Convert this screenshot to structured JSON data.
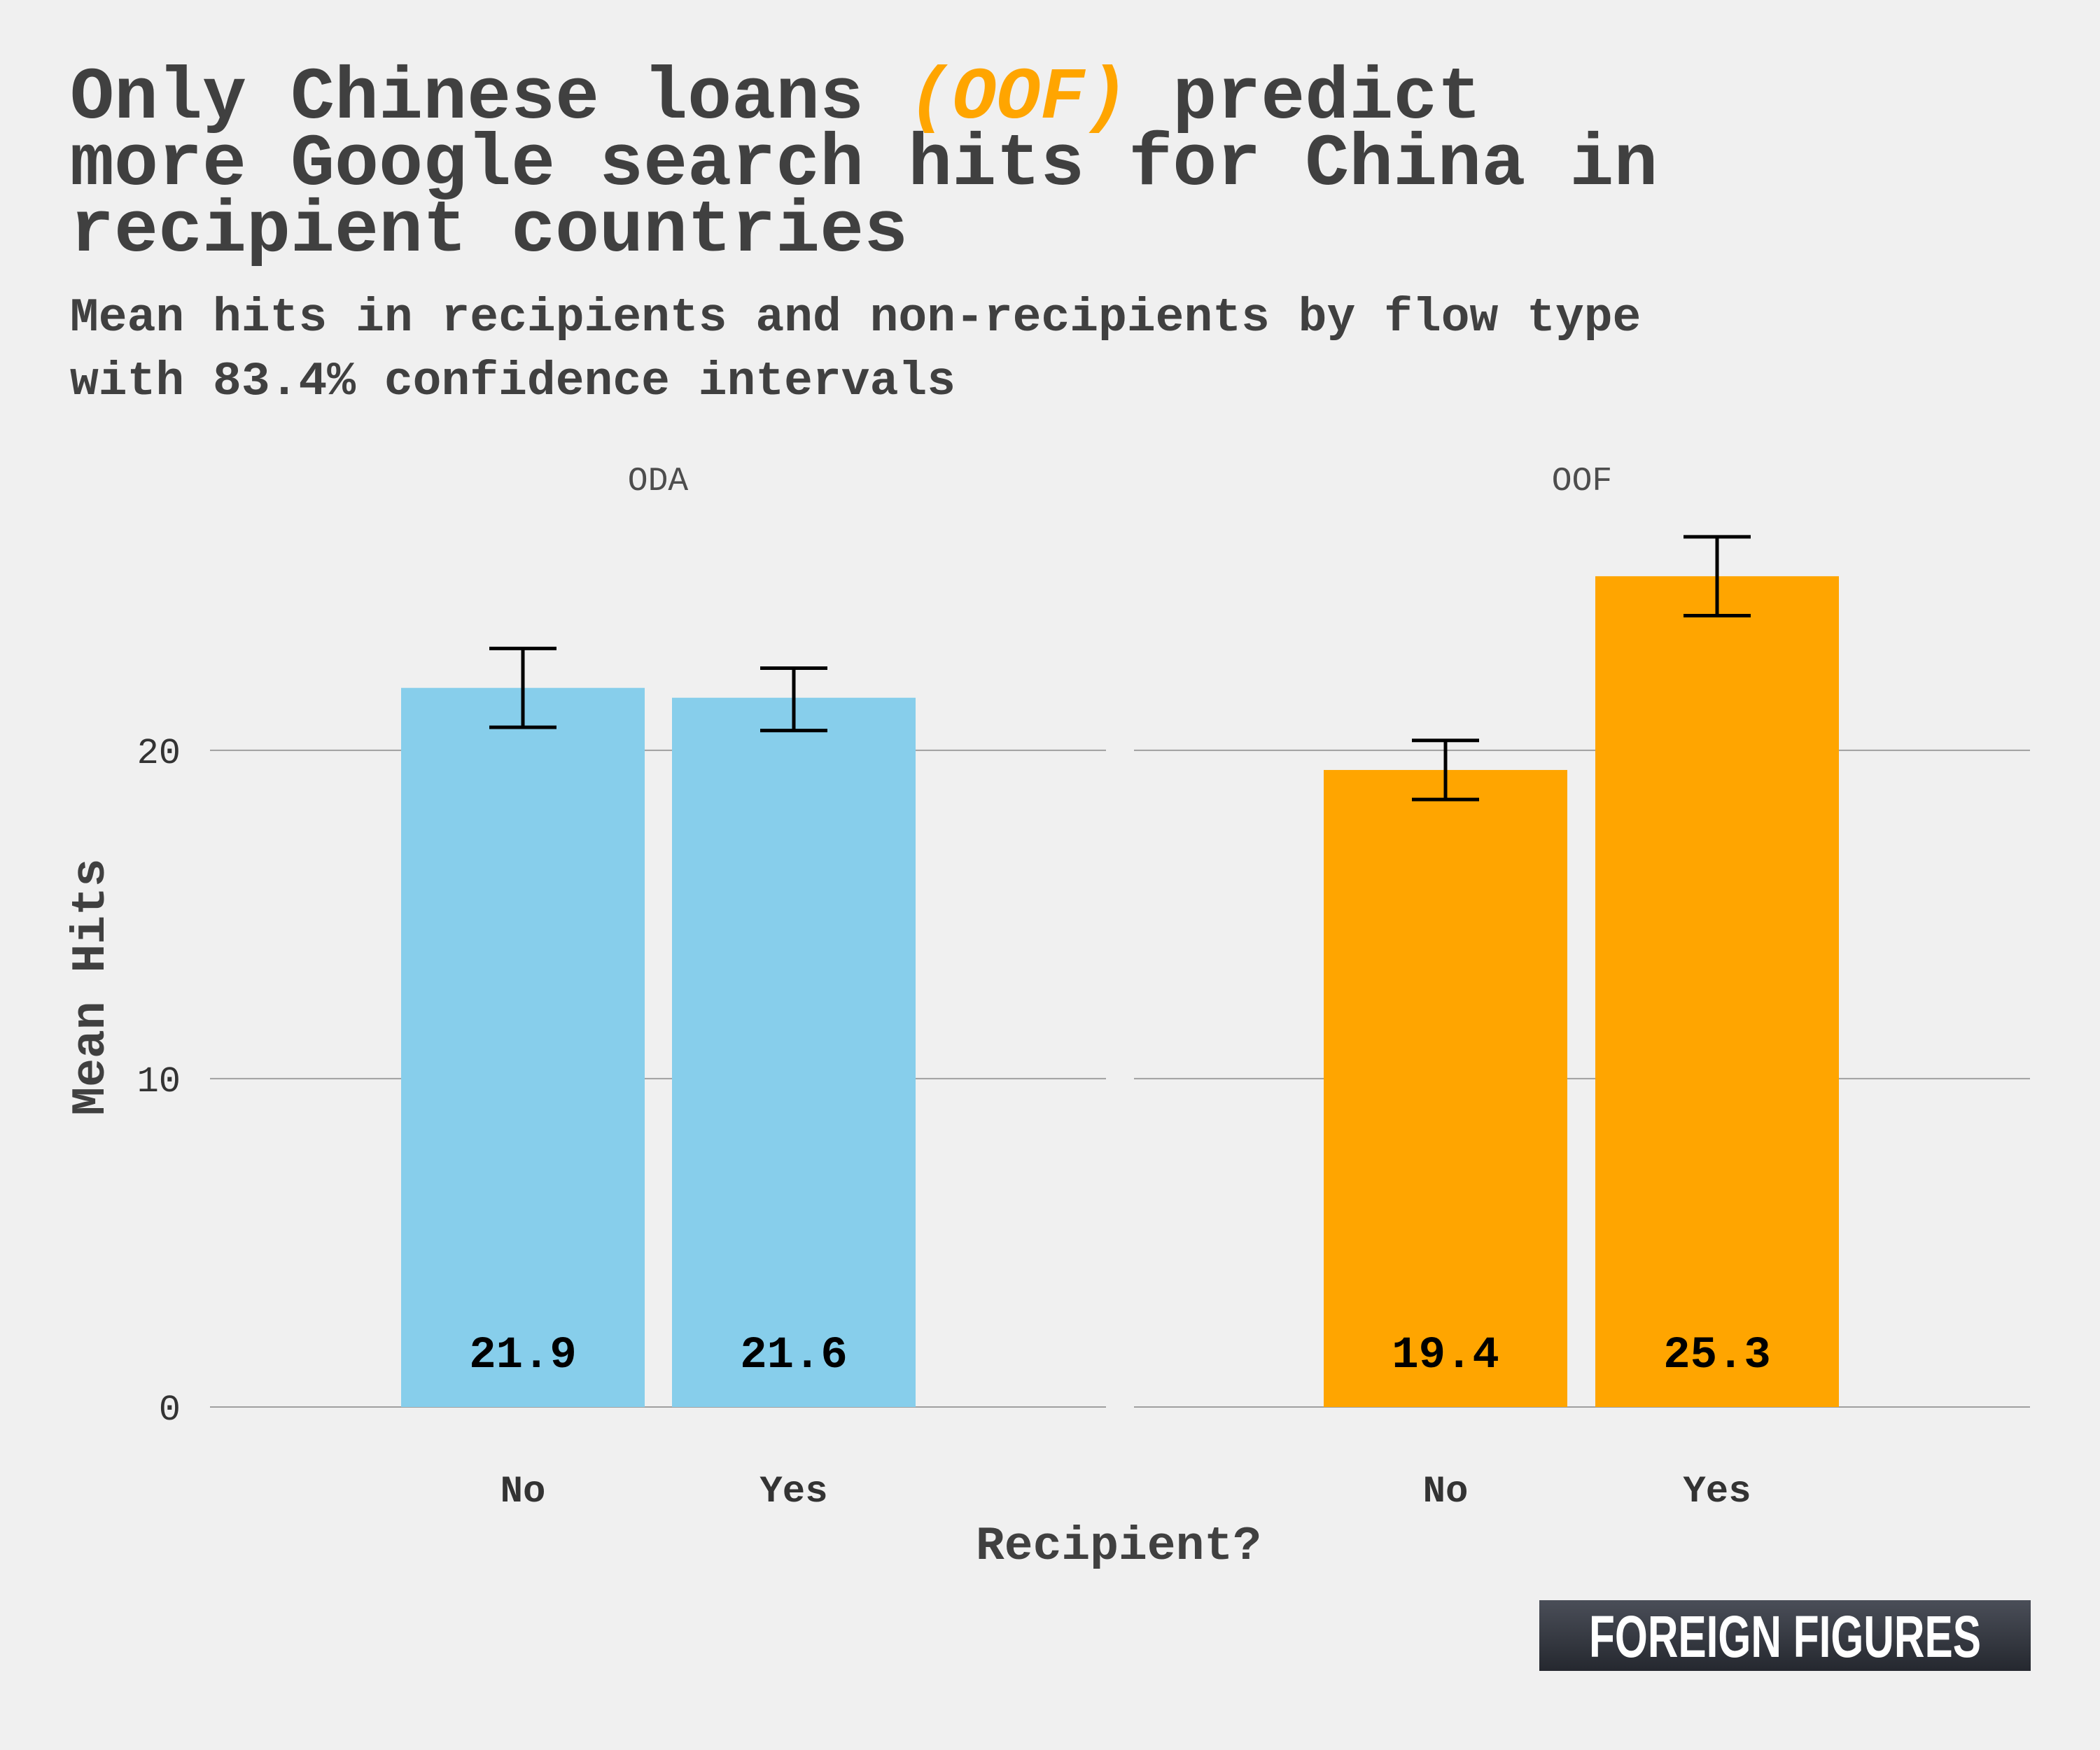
{
  "title": {
    "line1_pre": "Only Chinese loans ",
    "line1_highlight": "(OOF)",
    "line1_post": " predict",
    "line2": "more Google search hits for China in",
    "line3": "recipient countries",
    "highlight_color": "#ffa500"
  },
  "subtitle": {
    "line1": "Mean hits in recipients and non-recipients by flow type",
    "line2": "with 83.4% confidence intervals"
  },
  "logo": {
    "text": "FOREIGN FIGURES"
  },
  "chart_data": {
    "type": "bar",
    "xlabel": "Recipient?",
    "ylabel": "Mean Hits",
    "ylim": [
      0,
      27.5
    ],
    "yticks": [
      0,
      10,
      20
    ],
    "ytick_labels": [
      "0",
      "10",
      "20"
    ],
    "grid": true,
    "legend": "none",
    "categories": [
      "No",
      "Yes"
    ],
    "panels": [
      {
        "name": "ODA",
        "color": "#87ceeb",
        "bars": [
          {
            "category": "No",
            "value": 21.9,
            "label": "21.9",
            "ci_low": 20.7,
            "ci_high": 23.1
          },
          {
            "category": "Yes",
            "value": 21.6,
            "label": "21.6",
            "ci_low": 20.6,
            "ci_high": 22.5
          }
        ]
      },
      {
        "name": "OOF",
        "color": "#ffa500",
        "bars": [
          {
            "category": "No",
            "value": 19.4,
            "label": "19.4",
            "ci_low": 18.5,
            "ci_high": 20.3
          },
          {
            "category": "Yes",
            "value": 25.3,
            "label": "25.3",
            "ci_low": 24.1,
            "ci_high": 26.5
          }
        ]
      }
    ]
  }
}
